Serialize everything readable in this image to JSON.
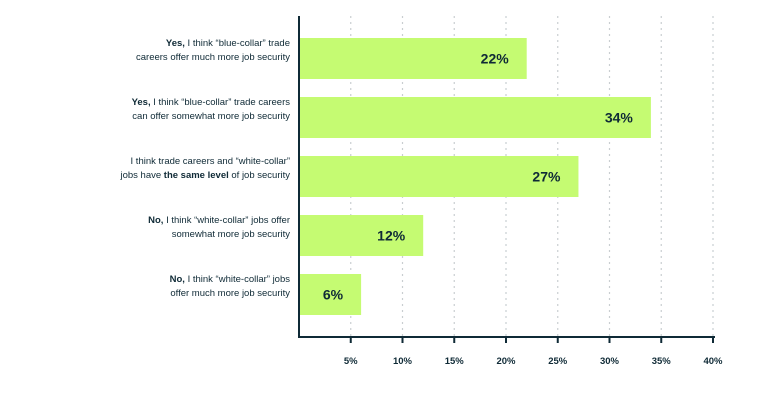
{
  "chart_data": {
    "type": "bar",
    "orientation": "horizontal",
    "categories": [
      "Yes, I think “blue-collar” trade careers offer much more job security",
      "Yes, I think “blue-collar” trade careers can offer somewhat more job security",
      "I think trade careers and “white-collar” jobs have the same level of job security",
      "No, I think “white-collar” jobs offer somewhat more job security",
      "No, I think “white-collar” jobs offer much more job security"
    ],
    "category_labels": [
      {
        "bold": "Yes,",
        "rest_1": " I think “blue-collar” trade",
        "line2": "careers offer much more job security"
      },
      {
        "bold": "Yes,",
        "rest_1": " I think “blue-collar” trade careers",
        "line2": "can offer somewhat more job security"
      },
      {
        "line1": "I think trade careers and “white-collar”",
        "pre2": "jobs have ",
        "bold2": "the same level",
        "post2": " of job security"
      },
      {
        "bold": "No,",
        "rest_1": " I think “white-collar” jobs offer",
        "line2": "somewhat more job security"
      },
      {
        "bold": "No,",
        "rest_1": " I think “white-collar” jobs",
        "line2": "offer much more job security"
      }
    ],
    "values": [
      22,
      34,
      27,
      12,
      6
    ],
    "data_labels": [
      "22%",
      "34%",
      "27%",
      "12%",
      "6%"
    ],
    "x_ticks": [
      5,
      10,
      15,
      20,
      25,
      30,
      35,
      40
    ],
    "x_tick_labels": [
      "5%",
      "10%",
      "15%",
      "20%",
      "25%",
      "30%",
      "35%",
      "40%"
    ],
    "xlim": [
      0,
      40
    ],
    "grid": "vertical dotted",
    "colors": {
      "bar": "#c5fb72",
      "text": "#0f2a36",
      "axis": "#0f2a36",
      "grid": "#c9ced1"
    }
  }
}
